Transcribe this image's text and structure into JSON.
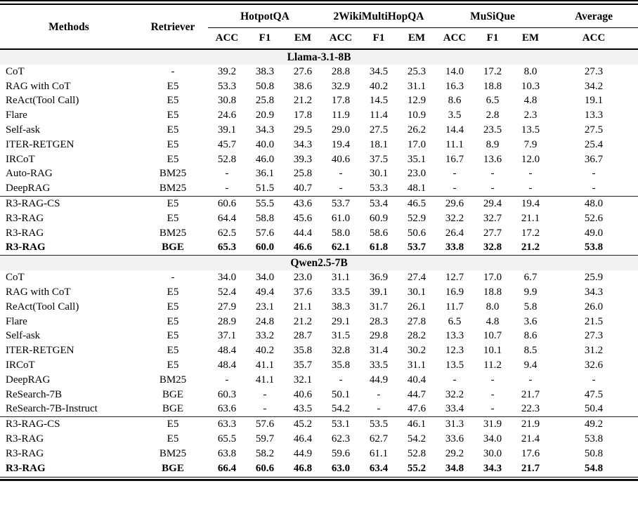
{
  "colors": {
    "band_bg": "#f1f1f1",
    "text": "#000000",
    "rule": "#000000"
  },
  "table": {
    "columns": {
      "methods_label": "Methods",
      "retriever_label": "Retriever",
      "groups": [
        {
          "label": "HotpotQA",
          "metrics": [
            "ACC",
            "F1",
            "EM"
          ]
        },
        {
          "label": "2WikiMultiHopQA",
          "metrics": [
            "ACC",
            "F1",
            "EM"
          ]
        },
        {
          "label": "MuSiQue",
          "metrics": [
            "ACC",
            "F1",
            "EM"
          ]
        },
        {
          "label": "Average",
          "metrics": [
            "ACC"
          ]
        }
      ]
    },
    "sections": [
      {
        "title": "Llama-3.1-8B",
        "groups": [
          {
            "rows": [
              {
                "method": "CoT",
                "retriever": "-",
                "bold": false,
                "values": [
                  "39.2",
                  "38.3",
                  "27.6",
                  "28.8",
                  "34.5",
                  "25.3",
                  "14.0",
                  "17.2",
                  "8.0",
                  "27.3"
                ]
              },
              {
                "method": "RAG with CoT",
                "retriever": "E5",
                "bold": false,
                "values": [
                  "53.3",
                  "50.8",
                  "38.6",
                  "32.9",
                  "40.2",
                  "31.1",
                  "16.3",
                  "18.8",
                  "10.3",
                  "34.2"
                ]
              },
              {
                "method": "ReAct(Tool Call)",
                "retriever": "E5",
                "bold": false,
                "values": [
                  "30.8",
                  "25.8",
                  "21.2",
                  "17.8",
                  "14.5",
                  "12.9",
                  "8.6",
                  "6.5",
                  "4.8",
                  "19.1"
                ]
              },
              {
                "method": "Flare",
                "retriever": "E5",
                "bold": false,
                "values": [
                  "24.6",
                  "20.9",
                  "17.8",
                  "11.9",
                  "11.4",
                  "10.9",
                  "3.5",
                  "2.8",
                  "2.3",
                  "13.3"
                ]
              },
              {
                "method": "Self-ask",
                "retriever": "E5",
                "bold": false,
                "values": [
                  "39.1",
                  "34.3",
                  "29.5",
                  "29.0",
                  "27.5",
                  "26.2",
                  "14.4",
                  "23.5",
                  "13.5",
                  "27.5"
                ]
              },
              {
                "method": "ITER-RETGEN",
                "retriever": "E5",
                "bold": false,
                "values": [
                  "45.7",
                  "40.0",
                  "34.3",
                  "19.4",
                  "18.1",
                  "17.0",
                  "11.1",
                  "8.9",
                  "7.9",
                  "25.4"
                ]
              },
              {
                "method": "IRCoT",
                "retriever": "E5",
                "bold": false,
                "values": [
                  "52.8",
                  "46.0",
                  "39.3",
                  "40.6",
                  "37.5",
                  "35.1",
                  "16.7",
                  "13.6",
                  "12.0",
                  "36.7"
                ]
              },
              {
                "method": "Auto-RAG",
                "retriever": "BM25",
                "bold": false,
                "values": [
                  "-",
                  "36.1",
                  "25.8",
                  "-",
                  "30.1",
                  "23.0",
                  "-",
                  "-",
                  "-",
                  "-"
                ]
              },
              {
                "method": "DeepRAG",
                "retriever": "BM25",
                "bold": false,
                "values": [
                  "-",
                  "51.5",
                  "40.7",
                  "-",
                  "53.3",
                  "48.1",
                  "-",
                  "-",
                  "-",
                  "-"
                ]
              }
            ]
          },
          {
            "rows": [
              {
                "method": "R3-RAG-CS",
                "retriever": "E5",
                "bold": false,
                "values": [
                  "60.6",
                  "55.5",
                  "43.6",
                  "53.7",
                  "53.4",
                  "46.5",
                  "29.6",
                  "29.4",
                  "19.4",
                  "48.0"
                ]
              },
              {
                "method": "R3-RAG",
                "retriever": "E5",
                "bold": false,
                "values": [
                  "64.4",
                  "58.8",
                  "45.6",
                  "61.0",
                  "60.9",
                  "52.9",
                  "32.2",
                  "32.7",
                  "21.1",
                  "52.6"
                ]
              },
              {
                "method": "R3-RAG",
                "retriever": "BM25",
                "bold": false,
                "values": [
                  "62.5",
                  "57.6",
                  "44.4",
                  "58.0",
                  "58.6",
                  "50.6",
                  "26.4",
                  "27.7",
                  "17.2",
                  "49.0"
                ]
              },
              {
                "method": "R3-RAG",
                "retriever": "BGE",
                "bold": true,
                "values": [
                  "65.3",
                  "60.0",
                  "46.6",
                  "62.1",
                  "61.8",
                  "53.7",
                  "33.8",
                  "32.8",
                  "21.2",
                  "53.8"
                ]
              }
            ]
          }
        ]
      },
      {
        "title": "Qwen2.5-7B",
        "groups": [
          {
            "rows": [
              {
                "method": "CoT",
                "retriever": "-",
                "bold": false,
                "values": [
                  "34.0",
                  "34.0",
                  "23.0",
                  "31.1",
                  "36.9",
                  "27.4",
                  "12.7",
                  "17.0",
                  "6.7",
                  "25.9"
                ]
              },
              {
                "method": "RAG with CoT",
                "retriever": "E5",
                "bold": false,
                "values": [
                  "52.4",
                  "49.4",
                  "37.6",
                  "33.5",
                  "39.1",
                  "30.1",
                  "16.9",
                  "18.8",
                  "9.9",
                  "34.3"
                ]
              },
              {
                "method": "ReAct(Tool Call)",
                "retriever": "E5",
                "bold": false,
                "values": [
                  "27.9",
                  "23.1",
                  "21.1",
                  "38.3",
                  "31.7",
                  "26.1",
                  "11.7",
                  "8.0",
                  "5.8",
                  "26.0"
                ]
              },
              {
                "method": "Flare",
                "retriever": "E5",
                "bold": false,
                "values": [
                  "28.9",
                  "24.8",
                  "21.2",
                  "29.1",
                  "28.3",
                  "27.8",
                  "6.5",
                  "4.8",
                  "3.6",
                  "21.5"
                ]
              },
              {
                "method": "Self-ask",
                "retriever": "E5",
                "bold": false,
                "values": [
                  "37.1",
                  "33.2",
                  "28.7",
                  "31.5",
                  "29.8",
                  "28.2",
                  "13.3",
                  "10.7",
                  "8.6",
                  "27.3"
                ]
              },
              {
                "method": "ITER-RETGEN",
                "retriever": "E5",
                "bold": false,
                "values": [
                  "48.4",
                  "40.2",
                  "35.8",
                  "32.8",
                  "31.4",
                  "30.2",
                  "12.3",
                  "10.1",
                  "8.5",
                  "31.2"
                ]
              },
              {
                "method": "IRCoT",
                "retriever": "E5",
                "bold": false,
                "values": [
                  "48.4",
                  "41.1",
                  "35.7",
                  "35.8",
                  "33.5",
                  "31.1",
                  "13.5",
                  "11.2",
                  "9.4",
                  "32.6"
                ]
              },
              {
                "method": "DeepRAG",
                "retriever": "BM25",
                "bold": false,
                "values": [
                  "-",
                  "41.1",
                  "32.1",
                  "-",
                  "44.9",
                  "40.4",
                  "-",
                  "-",
                  "-",
                  "-"
                ]
              },
              {
                "method": "ReSearch-7B",
                "retriever": "BGE",
                "bold": false,
                "values": [
                  "60.3",
                  "-",
                  "40.6",
                  "50.1",
                  "-",
                  "44.7",
                  "32.2",
                  "-",
                  "21.7",
                  "47.5"
                ]
              },
              {
                "method": "ReSearch-7B-Instruct",
                "retriever": "BGE",
                "bold": false,
                "values": [
                  "63.6",
                  "-",
                  "43.5",
                  "54.2",
                  "-",
                  "47.6",
                  "33.4",
                  "-",
                  "22.3",
                  "50.4"
                ]
              }
            ]
          },
          {
            "rows": [
              {
                "method": "R3-RAG-CS",
                "retriever": "E5",
                "bold": false,
                "values": [
                  "63.3",
                  "57.6",
                  "45.2",
                  "53.1",
                  "53.5",
                  "46.1",
                  "31.3",
                  "31.9",
                  "21.9",
                  "49.2"
                ]
              },
              {
                "method": "R3-RAG",
                "retriever": "E5",
                "bold": false,
                "values": [
                  "65.5",
                  "59.7",
                  "46.4",
                  "62.3",
                  "62.7",
                  "54.2",
                  "33.6",
                  "34.0",
                  "21.4",
                  "53.8"
                ]
              },
              {
                "method": "R3-RAG",
                "retriever": "BM25",
                "bold": false,
                "values": [
                  "63.8",
                  "58.2",
                  "44.9",
                  "59.6",
                  "61.1",
                  "52.8",
                  "29.2",
                  "30.0",
                  "17.6",
                  "50.8"
                ]
              },
              {
                "method": "R3-RAG",
                "retriever": "BGE",
                "bold": true,
                "values": [
                  "66.4",
                  "60.6",
                  "46.8",
                  "63.0",
                  "63.4",
                  "55.2",
                  "34.8",
                  "34.3",
                  "21.7",
                  "54.8"
                ]
              }
            ]
          }
        ]
      }
    ]
  }
}
